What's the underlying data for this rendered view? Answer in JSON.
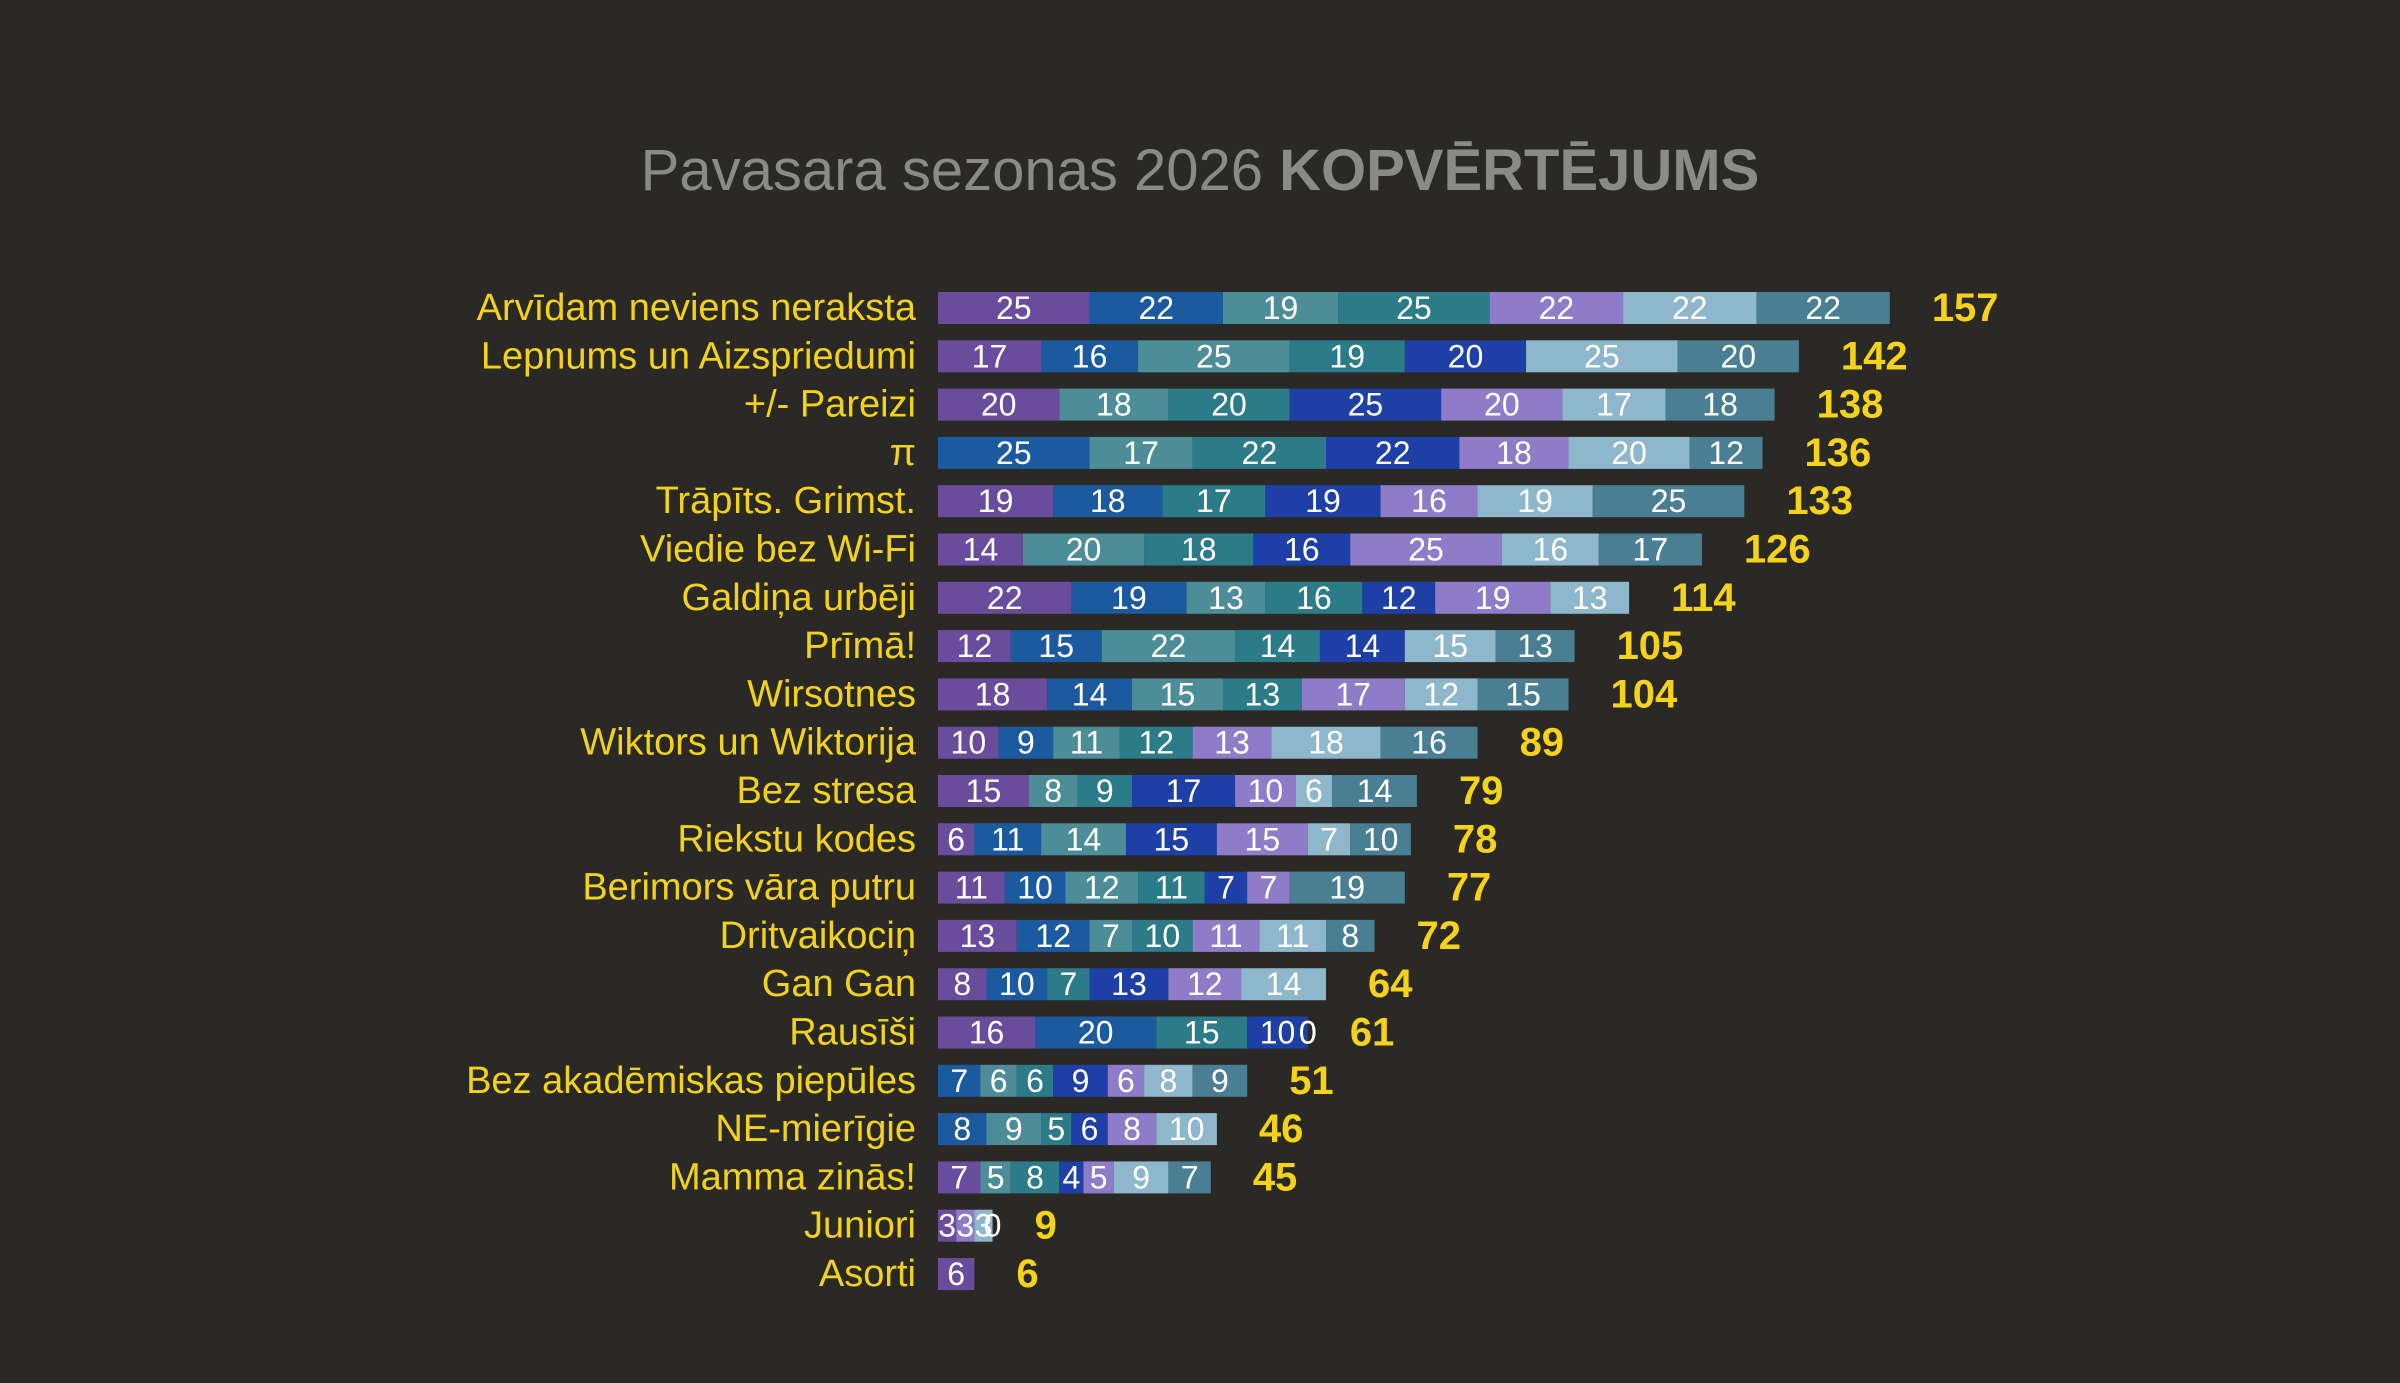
{
  "chart_data": {
    "type": "stacked-bar-horizontal",
    "title": "Pavasara sezonas 2026",
    "title_bold": "KOPVĒRTĒJUMS",
    "categories": [
      "Arvīdam neviens neraksta",
      "Lepnums un Aizspriedumi",
      "+/- Pareizi",
      "π",
      "Trāpīts. Grimst.",
      "Viedie bez Wi-Fi",
      "Galdiņa urbēji",
      "Prīmā!",
      "Wirsotnes",
      "Wiktors un Wiktorija",
      "Bez stresa",
      "Riekstu kodes",
      "Berimors vāra putru",
      "Dritvaikociņ",
      "Gan Gan",
      "Rausīši",
      "Bez akadēmiskas piepūles",
      "NE-mierīgie",
      "Mamma zinās!",
      "Juniori",
      "Asorti"
    ],
    "series": [
      {
        "color": "#6a4c9c",
        "values": [
          25,
          17,
          20,
          null,
          19,
          14,
          22,
          12,
          18,
          10,
          15,
          6,
          11,
          13,
          8,
          16,
          null,
          null,
          7,
          3,
          6
        ]
      },
      {
        "color": "#1c5aa0",
        "values": [
          22,
          16,
          null,
          25,
          18,
          null,
          19,
          15,
          14,
          9,
          null,
          11,
          10,
          12,
          10,
          20,
          7,
          8,
          null,
          null,
          null
        ]
      },
      {
        "color": "#4d8d98",
        "values": [
          19,
          25,
          18,
          17,
          null,
          20,
          13,
          22,
          15,
          11,
          8,
          14,
          12,
          7,
          null,
          null,
          6,
          9,
          5,
          null,
          null
        ]
      },
      {
        "color": "#2c7b88",
        "values": [
          25,
          19,
          20,
          22,
          17,
          18,
          16,
          14,
          13,
          12,
          9,
          null,
          11,
          10,
          7,
          15,
          6,
          5,
          8,
          null,
          null
        ]
      },
      {
        "color": "#1e3fa6",
        "values": [
          null,
          20,
          25,
          22,
          19,
          16,
          12,
          14,
          null,
          null,
          17,
          15,
          7,
          null,
          13,
          10,
          9,
          6,
          4,
          null,
          null
        ]
      },
      {
        "color": "#8e7cc8",
        "values": [
          22,
          null,
          20,
          18,
          16,
          25,
          19,
          null,
          17,
          13,
          10,
          15,
          7,
          11,
          12,
          0,
          6,
          8,
          5,
          3,
          null
        ]
      },
      {
        "color": "#8fb7cc",
        "values": [
          22,
          25,
          17,
          20,
          19,
          16,
          13,
          15,
          12,
          18,
          6,
          7,
          null,
          11,
          14,
          0,
          8,
          10,
          9,
          3,
          null
        ]
      },
      {
        "color": "#4a7f93",
        "values": [
          22,
          20,
          18,
          12,
          25,
          17,
          null,
          13,
          15,
          16,
          14,
          10,
          19,
          8,
          null,
          null,
          9,
          null,
          7,
          0,
          null
        ]
      }
    ],
    "totals": [
      157,
      142,
      138,
      136,
      133,
      126,
      114,
      105,
      104,
      89,
      79,
      78,
      77,
      72,
      64,
      61,
      51,
      46,
      45,
      9,
      6
    ],
    "xlim": [
      0,
      160
    ]
  }
}
